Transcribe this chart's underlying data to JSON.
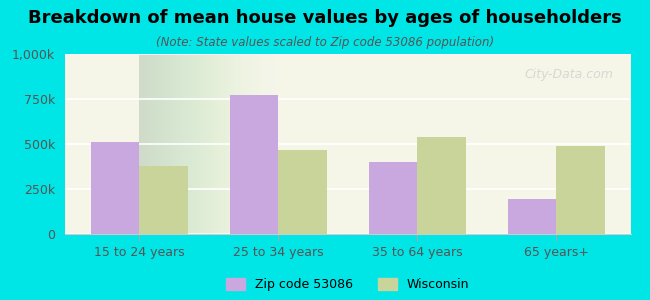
{
  "title": "Breakdown of mean house values by ages of householders",
  "subtitle": "(Note: State values scaled to Zip code 53086 population)",
  "categories": [
    "15 to 24 years",
    "25 to 34 years",
    "35 to 64 years",
    "65 years+"
  ],
  "zip_values": [
    510000,
    775000,
    400000,
    195000
  ],
  "wi_values": [
    380000,
    465000,
    540000,
    490000
  ],
  "zip_color": "#c9a8e0",
  "wi_color": "#c8d49a",
  "ylim": [
    0,
    1000000
  ],
  "yticks": [
    0,
    250000,
    500000,
    750000,
    1000000
  ],
  "ytick_labels": [
    "0",
    "250k",
    "500k",
    "750k",
    "1,000k"
  ],
  "background_color": "#00e5e5",
  "plot_bg_start": "#f5f5e8",
  "plot_bg_end": "#ffffff",
  "legend_zip": "Zip code 53086",
  "legend_wi": "Wisconsin",
  "bar_width": 0.35,
  "watermark": "City-Data.com"
}
